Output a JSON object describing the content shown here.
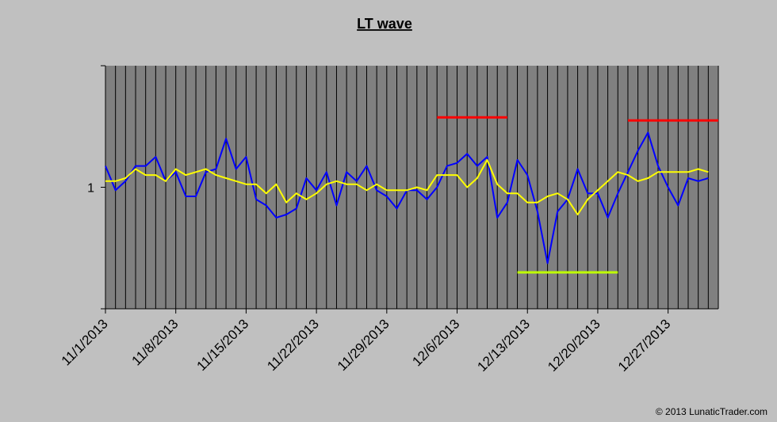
{
  "chart_data": {
    "type": "line",
    "title": "LT wave",
    "copyright": "© 2013 LunaticTrader.com",
    "yticks": [
      "1"
    ],
    "ylim": [
      0.6,
      1.4
    ],
    "xlim": [
      "11/1/2013",
      "1/1/2014"
    ],
    "x_tick_labels": [
      "11/1/2013",
      "11/8/2013",
      "11/15/2013",
      "11/22/2013",
      "11/29/2013",
      "12/6/2013",
      "12/13/2013",
      "12/20/2013",
      "12/27/2013"
    ],
    "grid": "vertical daily",
    "colors": {
      "background": "#c0c0c0",
      "plot_area": "#808080",
      "grid": "#000000",
      "blue_series": "#0000ff",
      "yellow_series": "#ffff00",
      "red_lines": "#ff0000",
      "green_line": "#bfff00"
    },
    "series": [
      {
        "color": "#0000ff",
        "values": [
          1.07,
          0.99,
          1.02,
          1.07,
          1.07,
          1.1,
          1.02,
          1.05,
          0.97,
          0.97,
          1.05,
          1.06,
          1.16,
          1.06,
          1.1,
          0.96,
          0.94,
          0.9,
          0.91,
          0.93,
          1.03,
          0.99,
          1.05,
          0.94,
          1.05,
          1.02,
          1.07,
          0.99,
          0.97,
          0.93,
          0.99,
          0.99,
          0.96,
          1.0,
          1.07,
          1.08,
          1.11,
          1.07,
          1.1,
          0.9,
          0.95,
          1.09,
          1.04,
          0.92,
          0.75,
          0.92,
          0.96,
          1.06,
          0.98,
          0.98,
          0.9,
          0.98,
          1.05,
          1.12,
          1.18,
          1.07,
          1.0,
          0.94,
          1.03,
          1.02,
          1.03
        ]
      },
      {
        "color": "#ffff00",
        "values": [
          1.02,
          1.02,
          1.03,
          1.06,
          1.04,
          1.04,
          1.02,
          1.06,
          1.04,
          1.05,
          1.06,
          1.04,
          1.03,
          1.02,
          1.01,
          1.01,
          0.98,
          1.01,
          0.95,
          0.98,
          0.96,
          0.98,
          1.01,
          1.02,
          1.01,
          1.01,
          0.99,
          1.01,
          0.99,
          0.99,
          0.99,
          1.0,
          0.99,
          1.04,
          1.04,
          1.04,
          1.0,
          1.03,
          1.09,
          1.01,
          0.98,
          0.98,
          0.95,
          0.95,
          0.97,
          0.98,
          0.96,
          0.91,
          0.96,
          0.99,
          1.02,
          1.05,
          1.04,
          1.02,
          1.03,
          1.05,
          1.05,
          1.05,
          1.05,
          1.06,
          1.05
        ]
      }
    ],
    "reference_lines": [
      {
        "color": "#ff0000",
        "x_from": "12/4/2013",
        "x_to": "12/11/2013",
        "y": 1.23
      },
      {
        "color": "#ff0000",
        "x_from": "12/23/2013",
        "x_to": "1/1/2014",
        "y": 1.22
      },
      {
        "color": "#bfff00",
        "x_from": "12/12/2013",
        "x_to": "12/22/2013",
        "y": 0.72
      }
    ]
  }
}
